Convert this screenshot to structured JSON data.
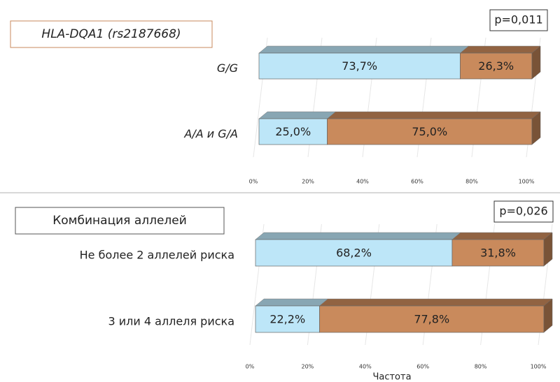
{
  "chart_data": [
    {
      "type": "bar",
      "orientation": "horizontal",
      "stacked": true,
      "title": "HLA-DQA1 (rs2187668)",
      "title_italic": true,
      "annotation": "p=0,011",
      "categories": [
        "G/G",
        "A/A и G/A"
      ],
      "series": [
        {
          "color": "#bde6f8",
          "values": [
            73.7,
            25.0
          ],
          "value_labels": [
            "73,7%",
            "25,0%"
          ]
        },
        {
          "color": "#c98a5c",
          "values": [
            26.3,
            75.0
          ],
          "value_labels": [
            "26,3%",
            "75,0%"
          ]
        }
      ],
      "xlim": [
        0,
        100
      ],
      "xticks": [
        {
          "value": 0,
          "label": "0%"
        },
        {
          "value": 20,
          "label": "20%"
        },
        {
          "value": 40,
          "label": "40%"
        },
        {
          "value": 60,
          "label": "60%"
        },
        {
          "value": 80,
          "label": "80%"
        },
        {
          "value": 100,
          "label": "100%"
        }
      ],
      "grid": true
    },
    {
      "type": "bar",
      "orientation": "horizontal",
      "stacked": true,
      "title": "Комбинация аллелей",
      "title_italic": false,
      "annotation": "p=0,026",
      "xlabel": "Частота",
      "categories": [
        "Не более 2 аллелей риска",
        "3 или 4 аллеля риска"
      ],
      "series": [
        {
          "color": "#bde6f8",
          "values": [
            68.2,
            22.2
          ],
          "value_labels": [
            "68,2%",
            "22,2%"
          ]
        },
        {
          "color": "#c98a5c",
          "values": [
            31.8,
            77.8
          ],
          "value_labels": [
            "31,8%",
            "77,8%"
          ]
        }
      ],
      "xlim": [
        0,
        100
      ],
      "xticks": [
        {
          "value": 0,
          "label": "0%"
        },
        {
          "value": 20,
          "label": "20%"
        },
        {
          "value": 40,
          "label": "40%"
        },
        {
          "value": 60,
          "label": "60%"
        },
        {
          "value": 80,
          "label": "80%"
        },
        {
          "value": 100,
          "label": "100%"
        }
      ],
      "grid": true
    }
  ]
}
